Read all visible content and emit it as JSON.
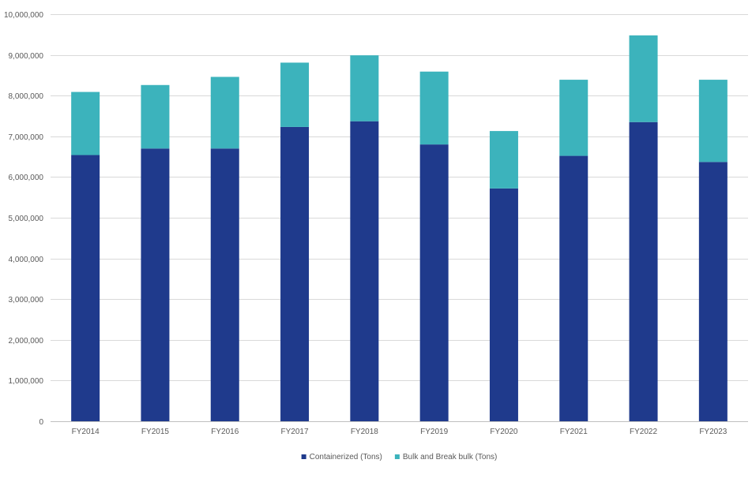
{
  "chart_data": {
    "type": "bar",
    "stacked": true,
    "title": "",
    "xlabel": "",
    "ylabel": "",
    "categories": [
      "FY2014",
      "FY2015",
      "FY2016",
      "FY2017",
      "FY2018",
      "FY2019",
      "FY2020",
      "FY2021",
      "FY2022",
      "FY2023"
    ],
    "series": [
      {
        "name": "Containerized (Tons)",
        "color": "#1F3A8C",
        "values": [
          6540000,
          6700000,
          6700000,
          7230000,
          7370000,
          6800000,
          5720000,
          6520000,
          7350000,
          6370000
        ]
      },
      {
        "name": "Bulk and Break bulk  (Tons)",
        "color": "#3CB3BC",
        "values": [
          1550000,
          1560000,
          1760000,
          1580000,
          1620000,
          1790000,
          1410000,
          1870000,
          2130000,
          2020000
        ]
      }
    ],
    "ylim": [
      0,
      10000000
    ],
    "yticks": [
      0,
      1000000,
      2000000,
      3000000,
      4000000,
      5000000,
      6000000,
      7000000,
      8000000,
      9000000,
      10000000
    ],
    "ytick_labels": [
      "0",
      "1,000,000",
      "2,000,000",
      "3,000,000",
      "4,000,000",
      "5,000,000",
      "6,000,000",
      "7,000,000",
      "8,000,000",
      "9,000,000",
      "10,000,000"
    ],
    "grid": true,
    "gridline_color": "#D9D9D9",
    "legend_position": "bottom"
  }
}
